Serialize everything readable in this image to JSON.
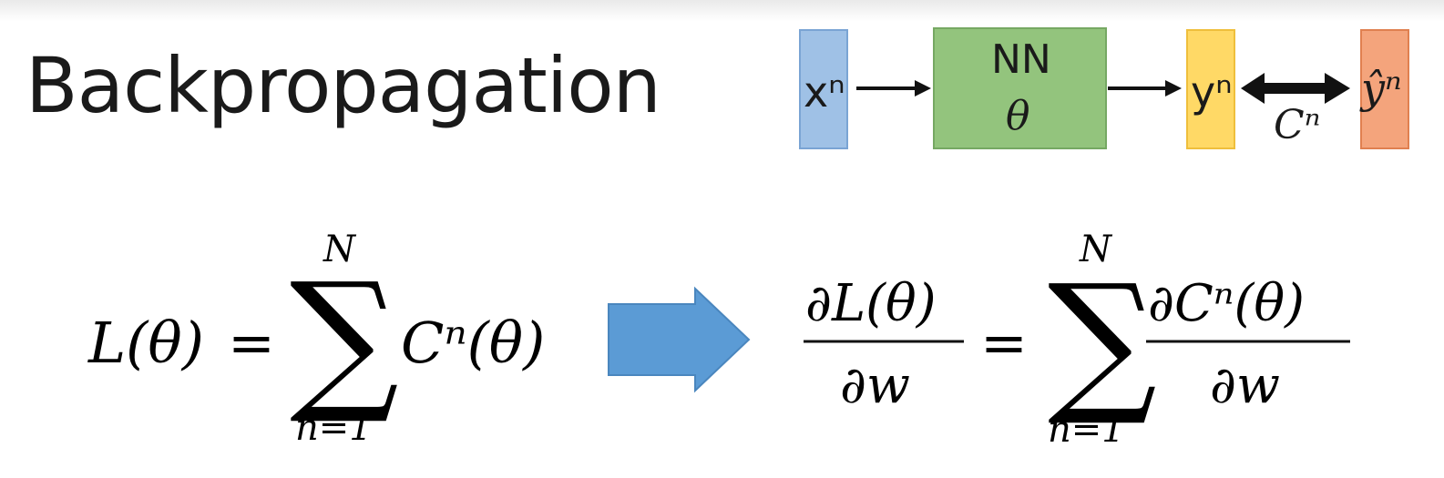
{
  "slide": {
    "title": "Backpropagation"
  },
  "diagram": {
    "input_label": "xⁿ",
    "network_label": "NN",
    "parameter_label": "θ",
    "output_label": "yⁿ",
    "target_label": "ŷⁿ",
    "cost_label": "Cⁿ",
    "colors": {
      "input": "#9fc1e6",
      "network": "#93c47d",
      "output": "#ffd966",
      "target": "#f4a47c",
      "implication_arrow": "#5b9bd5"
    }
  },
  "equation_left": {
    "lhs": "L(θ)",
    "equals": "=",
    "sum_symbol": "∑",
    "sum_upper": "N",
    "sum_lower": "n=1",
    "term": "Cⁿ(θ)"
  },
  "equation_right": {
    "lhs_numerator": "∂L(θ)",
    "lhs_denominator": "∂w",
    "equals": "=",
    "sum_symbol": "∑",
    "sum_upper": "N",
    "sum_lower": "n=1",
    "rhs_numerator": "∂Cⁿ(θ)",
    "rhs_denominator": "∂w"
  }
}
